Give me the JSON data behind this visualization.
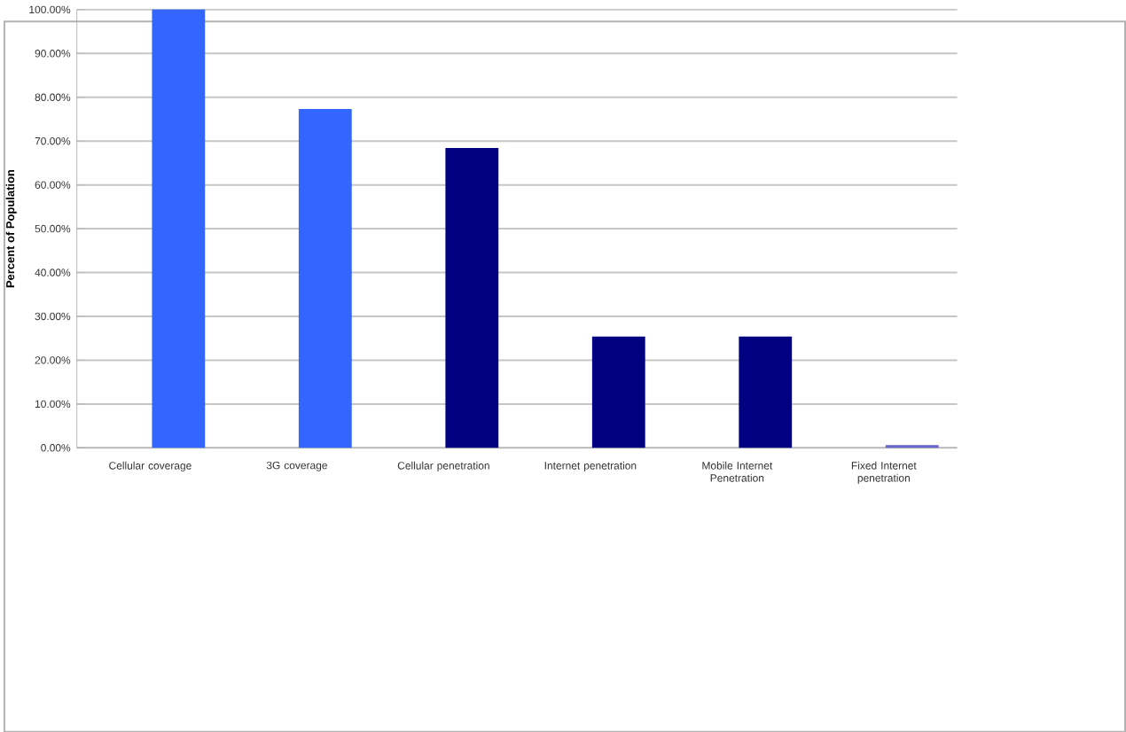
{
  "chart_data": {
    "type": "bar",
    "ylabel": "Percent of Population",
    "categories": [
      "Cellular coverage",
      "3G coverage",
      "Cellular penetration",
      "Internet penetration",
      "Mobile Internet Penetration",
      "Fixed Internet penetration"
    ],
    "values": [
      100,
      77.3,
      68.4,
      25.4,
      25.4,
      0.6
    ],
    "colors": [
      "#3366ff",
      "#3366ff",
      "#000080",
      "#000080",
      "#000080",
      "#6666cc"
    ],
    "ylim": [
      0,
      100
    ],
    "yticks": [
      {
        "value": 0,
        "label": "0.00%"
      },
      {
        "value": 10,
        "label": "10.00%"
      },
      {
        "value": 20,
        "label": "20.00%"
      },
      {
        "value": 30,
        "label": "30.00%"
      },
      {
        "value": 40,
        "label": "40.00%"
      },
      {
        "value": 50,
        "label": "50.00%"
      },
      {
        "value": 60,
        "label": "60.00%"
      },
      {
        "value": 70,
        "label": "70.00%"
      },
      {
        "value": 80,
        "label": "80.00%"
      },
      {
        "value": 90,
        "label": "90.00%"
      },
      {
        "value": 100,
        "label": "100.00%"
      }
    ],
    "grid": "y"
  }
}
